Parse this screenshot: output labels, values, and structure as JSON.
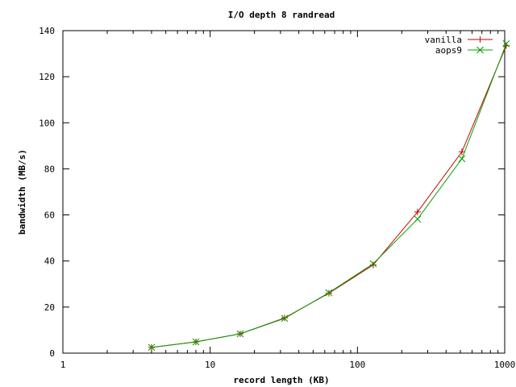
{
  "chart_data": {
    "type": "line",
    "title": "I/O depth 8 randread",
    "xlabel": "record length (KB)",
    "ylabel": "bandwidth (MB/s)",
    "x_scale": "log",
    "xlim": [
      1,
      1000
    ],
    "ylim": [
      0,
      140
    ],
    "x_ticks": [
      1,
      10,
      100,
      1000
    ],
    "x_tick_labels": [
      "1",
      "10",
      "100",
      "1000"
    ],
    "y_ticks": [
      0,
      20,
      40,
      60,
      80,
      100,
      120,
      140
    ],
    "y_tick_labels": [
      "0",
      "20",
      "40",
      "60",
      "80",
      "100",
      "120",
      "140"
    ],
    "grid": false,
    "legend_position": "top-right",
    "x": [
      4,
      8,
      16,
      32,
      64,
      128,
      256,
      512,
      1024
    ],
    "series": [
      {
        "name": "vanilla",
        "color": "#cc0000",
        "marker": "plus",
        "values": [
          2.5,
          4.9,
          8.4,
          15.3,
          26.0,
          38.3,
          61.3,
          87.4,
          133.5
        ]
      },
      {
        "name": "aops9",
        "color": "#00a000",
        "marker": "cross",
        "values": [
          2.5,
          4.9,
          8.4,
          15.1,
          26.2,
          38.8,
          58.2,
          84.4,
          134.3
        ]
      }
    ]
  }
}
